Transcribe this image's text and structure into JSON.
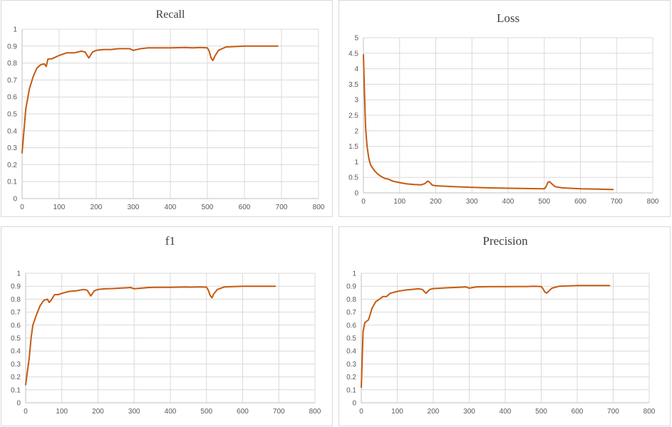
{
  "chart_data": [
    {
      "type": "line",
      "title": "Recall",
      "xlabel": "",
      "ylabel": "",
      "xlim": [
        0,
        800
      ],
      "ylim": [
        0,
        1
      ],
      "xticks": [
        "0",
        "100",
        "200",
        "300",
        "400",
        "500",
        "600",
        "700",
        "800"
      ],
      "yticks": [
        "0",
        "0.1",
        "0.2",
        "0.3",
        "0.4",
        "0.5",
        "0.6",
        "0.7",
        "0.8",
        "0.9",
        "1"
      ],
      "series": [
        {
          "name": "Recall",
          "color": "#c55a11",
          "x": [
            0,
            10,
            20,
            30,
            40,
            50,
            60,
            65,
            70,
            80,
            90,
            100,
            120,
            140,
            160,
            170,
            180,
            190,
            200,
            220,
            240,
            260,
            280,
            290,
            300,
            320,
            340,
            360,
            400,
            440,
            460,
            480,
            500,
            505,
            510,
            515,
            520,
            530,
            550,
            600,
            650,
            690
          ],
          "y": [
            0.27,
            0.53,
            0.65,
            0.72,
            0.77,
            0.79,
            0.795,
            0.78,
            0.825,
            0.825,
            0.835,
            0.845,
            0.86,
            0.86,
            0.87,
            0.865,
            0.83,
            0.865,
            0.875,
            0.88,
            0.88,
            0.885,
            0.885,
            0.885,
            0.875,
            0.885,
            0.89,
            0.89,
            0.89,
            0.892,
            0.89,
            0.892,
            0.89,
            0.87,
            0.83,
            0.815,
            0.84,
            0.875,
            0.895,
            0.9,
            0.9,
            0.9
          ]
        }
      ]
    },
    {
      "type": "line",
      "title": "Loss",
      "xlabel": "",
      "ylabel": "",
      "xlim": [
        0,
        800
      ],
      "ylim": [
        0,
        5
      ],
      "xticks": [
        "0",
        "100",
        "200",
        "300",
        "400",
        "500",
        "600",
        "700",
        "800"
      ],
      "yticks": [
        "0",
        "0.5",
        "1",
        "1.5",
        "2",
        "2.5",
        "3",
        "3.5",
        "4",
        "4.5",
        "5"
      ],
      "series": [
        {
          "name": "Loss",
          "color": "#c55a11",
          "x": [
            0,
            3,
            6,
            10,
            15,
            20,
            30,
            40,
            50,
            60,
            70,
            80,
            100,
            120,
            140,
            160,
            170,
            178,
            185,
            190,
            200,
            250,
            300,
            350,
            400,
            450,
            500,
            505,
            510,
            515,
            520,
            530,
            550,
            600,
            650,
            690
          ],
          "y": [
            4.45,
            3.2,
            2.1,
            1.5,
            1.1,
            0.9,
            0.72,
            0.6,
            0.52,
            0.46,
            0.44,
            0.38,
            0.33,
            0.29,
            0.27,
            0.26,
            0.3,
            0.38,
            0.32,
            0.25,
            0.23,
            0.2,
            0.18,
            0.16,
            0.15,
            0.14,
            0.13,
            0.2,
            0.34,
            0.36,
            0.3,
            0.2,
            0.16,
            0.13,
            0.12,
            0.11
          ]
        }
      ]
    },
    {
      "type": "line",
      "title": "f1",
      "xlabel": "",
      "ylabel": "",
      "xlim": [
        0,
        800
      ],
      "ylim": [
        0,
        1
      ],
      "xticks": [
        "0",
        "100",
        "200",
        "300",
        "400",
        "500",
        "600",
        "700",
        "800"
      ],
      "yticks": [
        "0",
        "0.1",
        "0.2",
        "0.3",
        "0.4",
        "0.5",
        "0.6",
        "0.7",
        "0.8",
        "0.9",
        "1"
      ],
      "series": [
        {
          "name": "f1",
          "color": "#c55a11",
          "x": [
            0,
            10,
            15,
            20,
            30,
            40,
            50,
            60,
            65,
            70,
            80,
            90,
            100,
            120,
            140,
            160,
            170,
            180,
            190,
            200,
            220,
            240,
            260,
            280,
            290,
            300,
            320,
            340,
            360,
            400,
            440,
            460,
            480,
            500,
            505,
            510,
            515,
            520,
            530,
            550,
            600,
            650,
            690
          ],
          "y": [
            0.14,
            0.35,
            0.5,
            0.6,
            0.68,
            0.75,
            0.79,
            0.8,
            0.775,
            0.79,
            0.835,
            0.835,
            0.845,
            0.86,
            0.865,
            0.875,
            0.87,
            0.825,
            0.865,
            0.875,
            0.88,
            0.882,
            0.885,
            0.888,
            0.89,
            0.88,
            0.885,
            0.89,
            0.892,
            0.892,
            0.894,
            0.893,
            0.895,
            0.893,
            0.87,
            0.83,
            0.81,
            0.84,
            0.875,
            0.895,
            0.9,
            0.9,
            0.9
          ]
        }
      ]
    },
    {
      "type": "line",
      "title": "Precision",
      "xlabel": "",
      "ylabel": "",
      "xlim": [
        0,
        800
      ],
      "ylim": [
        0,
        1
      ],
      "xticks": [
        "0",
        "100",
        "200",
        "300",
        "400",
        "500",
        "600",
        "700",
        "800"
      ],
      "yticks": [
        "0",
        "0.1",
        "0.2",
        "0.3",
        "0.4",
        "0.5",
        "0.6",
        "0.7",
        "0.8",
        "0.9",
        "1"
      ],
      "series": [
        {
          "name": "Precision",
          "color": "#c55a11",
          "x": [
            0,
            5,
            10,
            20,
            30,
            40,
            50,
            60,
            70,
            80,
            100,
            120,
            140,
            160,
            170,
            180,
            190,
            200,
            240,
            280,
            290,
            300,
            320,
            360,
            400,
            440,
            460,
            480,
            500,
            505,
            510,
            515,
            520,
            530,
            550,
            600,
            650,
            690
          ],
          "y": [
            0.12,
            0.55,
            0.62,
            0.64,
            0.73,
            0.78,
            0.8,
            0.82,
            0.82,
            0.845,
            0.86,
            0.87,
            0.875,
            0.88,
            0.875,
            0.845,
            0.875,
            0.882,
            0.888,
            0.893,
            0.895,
            0.885,
            0.895,
            0.897,
            0.897,
            0.898,
            0.898,
            0.9,
            0.898,
            0.88,
            0.855,
            0.848,
            0.86,
            0.885,
            0.9,
            0.905,
            0.905,
            0.905
          ]
        }
      ]
    }
  ]
}
